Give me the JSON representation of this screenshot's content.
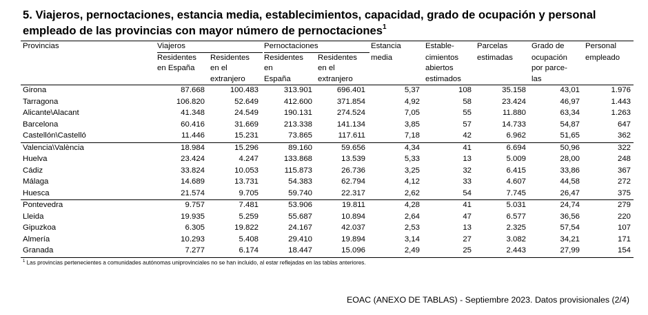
{
  "title": {
    "line1": "5. Viajeros, pernoctaciones, estancia media, establecimientos, capacidad, grado de ocupación y personal",
    "line2": "empleado de las provincias con mayor número de pernoctaciones",
    "note_marker": "1"
  },
  "headers": {
    "provincias": "Provincias",
    "viajeros": "Viajeros",
    "pernoctaciones": "Pernoctaciones",
    "res_esp": [
      "Residentes",
      "en España"
    ],
    "res_ext": [
      "Residentes",
      "en el",
      "extranjero"
    ],
    "per_esp": [
      "Residentes",
      "en",
      "España"
    ],
    "per_ext": [
      "Residentes",
      "en el",
      "extranjero"
    ],
    "estancia": [
      "Estancia",
      "media"
    ],
    "establecimientos": [
      "Estable-",
      "cimientos",
      "abiertos",
      "estimados"
    ],
    "parcelas": [
      "Parcelas",
      "estimadas"
    ],
    "grado": [
      "Grado de",
      "ocupación",
      "por parce-",
      "las"
    ],
    "personal": [
      "Personal",
      "empleado"
    ]
  },
  "rows": [
    [
      "Girona",
      "87.668",
      "100.483",
      "313.901",
      "696.401",
      "5,37",
      "108",
      "35.158",
      "43,01",
      "1.976"
    ],
    [
      "Tarragona",
      "106.820",
      "52.649",
      "412.600",
      "371.854",
      "4,92",
      "58",
      "23.424",
      "46,97",
      "1.443"
    ],
    [
      "Alicante\\Alacant",
      "41.348",
      "24.549",
      "190.131",
      "274.524",
      "7,05",
      "55",
      "11.880",
      "63,34",
      "1.263"
    ],
    [
      "Barcelona",
      "60.416",
      "31.669",
      "213.338",
      "141.134",
      "3,85",
      "57",
      "14.733",
      "54,87",
      "647"
    ],
    [
      "Castellón\\Castelló",
      "11.446",
      "15.231",
      "73.865",
      "117.611",
      "7,18",
      "42",
      "6.962",
      "51,65",
      "362"
    ],
    [
      "Valencia\\València",
      "18.984",
      "15.296",
      "89.160",
      "59.656",
      "4,34",
      "41",
      "6.694",
      "50,96",
      "322"
    ],
    [
      "Huelva",
      "23.424",
      "4.247",
      "133.868",
      "13.539",
      "5,33",
      "13",
      "5.009",
      "28,00",
      "248"
    ],
    [
      "Cádiz",
      "33.824",
      "10.053",
      "115.873",
      "26.736",
      "3,25",
      "32",
      "6.415",
      "33,86",
      "367"
    ],
    [
      "Málaga",
      "14.689",
      "13.731",
      "54.383",
      "62.794",
      "4,12",
      "33",
      "4.607",
      "44,58",
      "272"
    ],
    [
      "Huesca",
      "21.574",
      "9.705",
      "59.740",
      "22.317",
      "2,62",
      "54",
      "7.745",
      "26,47",
      "375"
    ],
    [
      "Pontevedra",
      "9.757",
      "7.481",
      "53.906",
      "19.811",
      "4,28",
      "41",
      "5.031",
      "24,74",
      "279"
    ],
    [
      "Lleida",
      "19.935",
      "5.259",
      "55.687",
      "10.894",
      "2,64",
      "47",
      "6.577",
      "36,56",
      "220"
    ],
    [
      "Gipuzkoa",
      "6.305",
      "19.822",
      "24.167",
      "42.037",
      "2,53",
      "13",
      "2.325",
      "57,54",
      "107"
    ],
    [
      "Almería",
      "10.293",
      "5.408",
      "29.410",
      "19.894",
      "3,14",
      "27",
      "3.082",
      "34,21",
      "171"
    ],
    [
      "Granada",
      "7.277",
      "6.174",
      "18.447",
      "15.096",
      "2,49",
      "25",
      "2.443",
      "27,99",
      "154"
    ]
  ],
  "footnote": {
    "marker": "1",
    "text": "Las provincias pertenecientes a comunidades autónomas uniprovinciales no se han incluido, al estar reflejadas en las tablas anteriores."
  },
  "footer": "EOAC (ANEXO DE TABLAS) - Septiembre 2023. Datos provisionales (2/4)"
}
